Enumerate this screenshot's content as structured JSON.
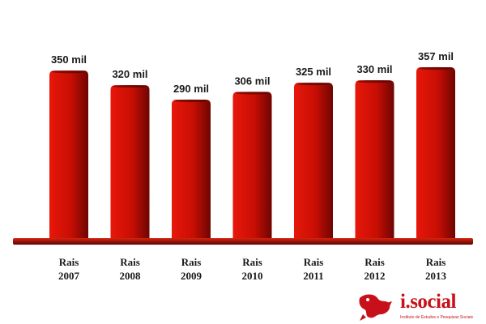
{
  "chart_data": {
    "type": "bar",
    "categories": [
      [
        "Rais",
        "2007"
      ],
      [
        "Rais",
        "2008"
      ],
      [
        "Rais",
        "2009"
      ],
      [
        "Rais",
        "2010"
      ],
      [
        "Rais",
        "2011"
      ],
      [
        "Rais",
        "2012"
      ],
      [
        "Rais",
        "2013"
      ]
    ],
    "values": [
      350,
      320,
      290,
      306,
      325,
      330,
      357
    ],
    "value_labels": [
      "350 mil",
      "320 mil",
      "290 mil",
      "306 mil",
      "325 mil",
      "330 mil",
      "357 mil"
    ],
    "title": "",
    "xlabel": "",
    "ylabel": "",
    "grid": false,
    "legend": "none",
    "colors": {
      "bar_light": "#e8170a",
      "bar_mid": "#c80e04",
      "bar_dark": "#6e0502",
      "base": "#8e0a04",
      "text": "#1a1a1a"
    }
  },
  "logo": {
    "name": "i.social",
    "tagline": "Instituto de Estudos e Pesquisas Sociais",
    "icon": "dragon-logo-icon",
    "color": "#c8101a"
  }
}
